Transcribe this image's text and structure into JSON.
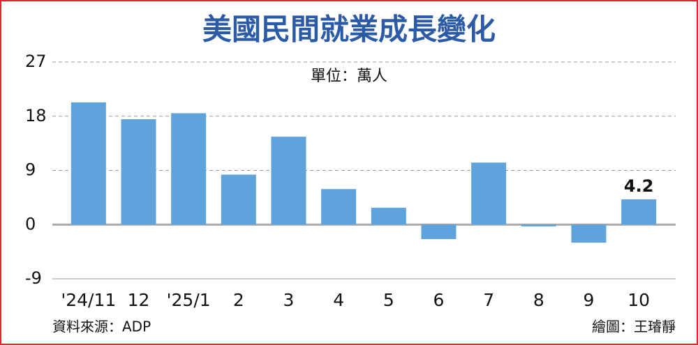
{
  "chart_data": {
    "type": "bar",
    "title": "美國民間就業成長變化",
    "subtitle": "單位：萬人",
    "categories": [
      "'24/11",
      "12",
      "'25/1",
      "2",
      "3",
      "4",
      "5",
      "6",
      "7",
      "8",
      "9",
      "10"
    ],
    "values": [
      20.3,
      17.5,
      18.5,
      8.3,
      14.6,
      5.9,
      2.8,
      -2.4,
      10.3,
      -0.3,
      -3.0,
      4.2
    ],
    "value_labels": [
      null,
      null,
      null,
      null,
      null,
      null,
      null,
      null,
      null,
      null,
      null,
      "4.2"
    ],
    "color": "#5ea3dc",
    "ylim": [
      -9,
      27
    ],
    "yticks": [
      -9,
      0,
      9,
      18,
      27
    ],
    "grid": true,
    "source": "資料來源：ADP",
    "credit": "繪圖：王璿靜"
  }
}
